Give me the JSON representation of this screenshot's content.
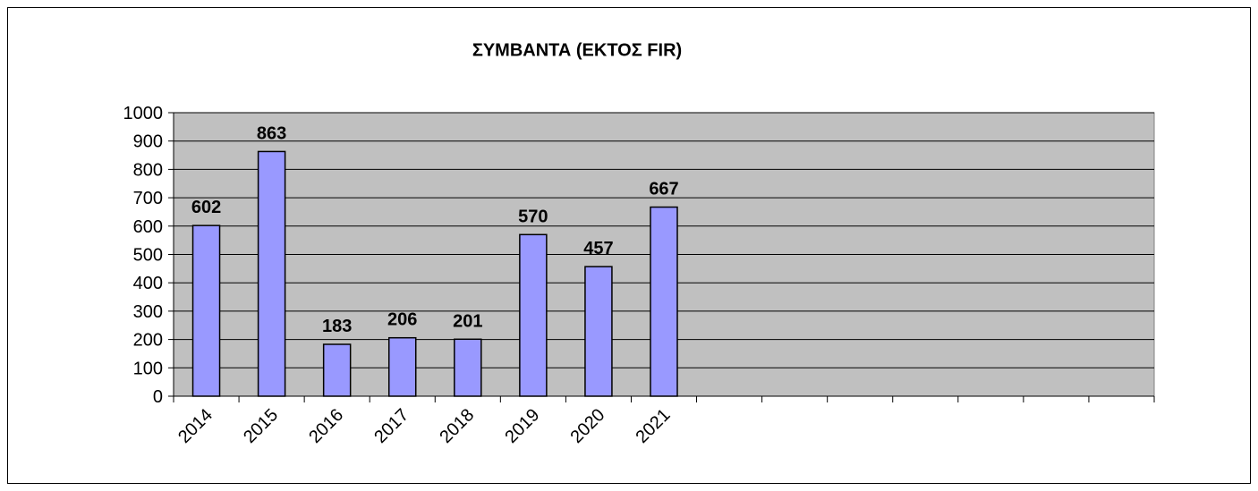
{
  "chart_data": {
    "type": "bar",
    "title": "ΣΥΜΒΑΝΤΑ (ΕΚΤΟΣ FIR)",
    "categories": [
      "2014",
      "2015",
      "2016",
      "2017",
      "2018",
      "2019",
      "2020",
      "2021",
      null,
      null,
      null,
      null,
      null,
      null,
      null
    ],
    "values": [
      602,
      863,
      183,
      206,
      201,
      570,
      457,
      667,
      null,
      null,
      null,
      null,
      null,
      null,
      null
    ],
    "color": "#9999ff",
    "ylim": [
      0,
      1000
    ],
    "yticks": [
      0,
      100,
      200,
      300,
      400,
      500,
      600,
      700,
      800,
      900,
      1000
    ],
    "grid": true
  }
}
